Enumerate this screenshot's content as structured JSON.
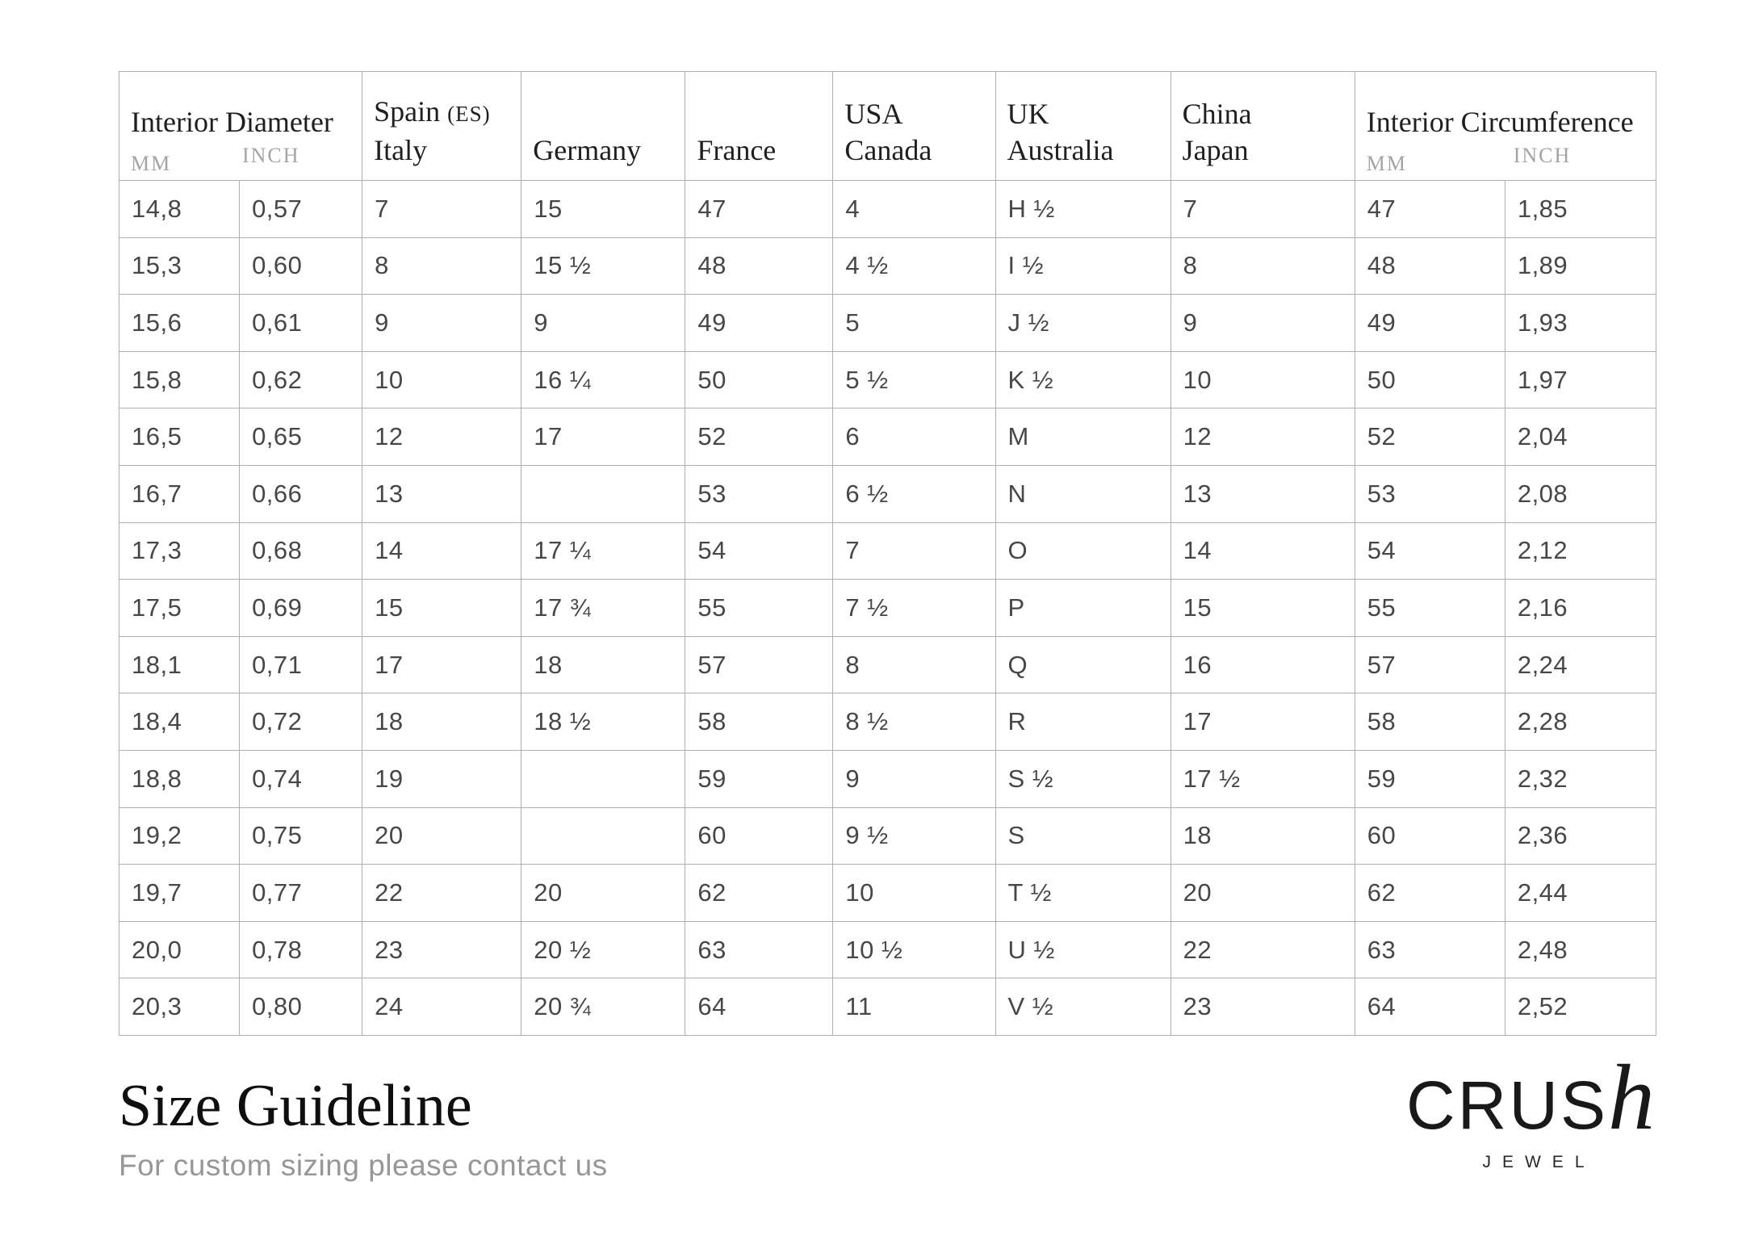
{
  "table": {
    "header": {
      "interior_diameter": {
        "title": "Interior Diameter",
        "mm": "MM",
        "inch": "INCH"
      },
      "spain_italy": {
        "name": "Spain",
        "code": "(ES)",
        "line2": "Italy"
      },
      "germany": "Germany",
      "france": "France",
      "usa_canada": {
        "line1": "USA",
        "line2": "Canada"
      },
      "uk_australia": {
        "line1": "UK",
        "line2": "Australia"
      },
      "china_japan": {
        "line1": "China",
        "line2": "Japan"
      },
      "interior_circumference": {
        "title": "Interior Circumference",
        "mm": "MM",
        "inch": "INCH"
      }
    },
    "rows": [
      [
        "14,8",
        "0,57",
        "7",
        "15",
        "47",
        "4",
        "H ½",
        "7",
        "47",
        "1,85"
      ],
      [
        "15,3",
        "0,60",
        "8",
        "15 ½",
        "48",
        "4 ½",
        "I ½",
        "8",
        "48",
        "1,89"
      ],
      [
        "15,6",
        "0,61",
        "9",
        "9",
        "49",
        "5",
        "J ½",
        "9",
        "49",
        "1,93"
      ],
      [
        "15,8",
        "0,62",
        "10",
        "16 ¼",
        "50",
        "5 ½",
        "K ½",
        "10",
        "50",
        "1,97"
      ],
      [
        "16,5",
        "0,65",
        "12",
        "17",
        "52",
        "6",
        "M",
        "12",
        "52",
        "2,04"
      ],
      [
        "16,7",
        "0,66",
        "13",
        "",
        "53",
        "6 ½",
        "N",
        "13",
        "53",
        "2,08"
      ],
      [
        "17,3",
        "0,68",
        "14",
        "17 ¼",
        "54",
        "7",
        "O",
        "14",
        "54",
        "2,12"
      ],
      [
        "17,5",
        "0,69",
        "15",
        "17 ¾",
        "55",
        "7 ½",
        "P",
        "15",
        "55",
        "2,16"
      ],
      [
        "18,1",
        "0,71",
        "17",
        "18",
        "57",
        "8",
        "Q",
        "16",
        "57",
        "2,24"
      ],
      [
        "18,4",
        "0,72",
        "18",
        "18 ½",
        "58",
        "8 ½",
        "R",
        "17",
        "58",
        "2,28"
      ],
      [
        "18,8",
        "0,74",
        "19",
        "",
        "59",
        "9",
        "S ½",
        "17 ½",
        "59",
        "2,32"
      ],
      [
        "19,2",
        "0,75",
        "20",
        "",
        "60",
        "9 ½",
        "S",
        "18",
        "60",
        "2,36"
      ],
      [
        "19,7",
        "0,77",
        "22",
        "20",
        "62",
        "10",
        "T ½",
        "20",
        "62",
        "2,44"
      ],
      [
        "20,0",
        "0,78",
        "23",
        "20 ½",
        "63",
        "10 ½",
        "U ½",
        "22",
        "63",
        "2,48"
      ],
      [
        "20,3",
        "0,80",
        "24",
        "20 ¾",
        "64",
        "11",
        "V ½",
        "23",
        "64",
        "2,52"
      ]
    ]
  },
  "footer": {
    "title": "Size Guideline",
    "subtitle": "For custom sizing please contact us"
  },
  "logo": {
    "main": "CRUS",
    "accent": "h",
    "sub": "JEWEL"
  }
}
